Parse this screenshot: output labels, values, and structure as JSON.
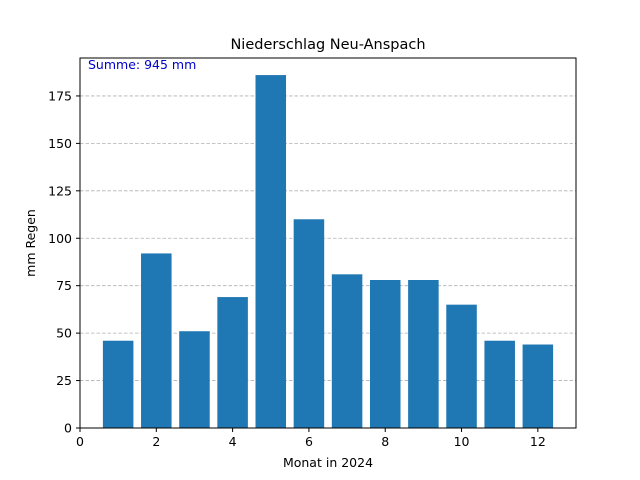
{
  "chart_data": {
    "type": "bar",
    "title": "Niederschlag  Neu-Anspach",
    "xlabel": "Monat in 2024",
    "ylabel": "mm Regen",
    "annotation": "Summe: 945 mm",
    "x": [
      1,
      2,
      3,
      4,
      5,
      6,
      7,
      8,
      9,
      10,
      11,
      12
    ],
    "values": [
      46,
      92,
      51,
      69,
      186,
      110,
      81,
      78,
      78,
      65,
      46,
      44
    ],
    "xlim": [
      0,
      13
    ],
    "ylim": [
      0,
      195
    ],
    "x_ticks": [
      0,
      2,
      4,
      6,
      8,
      10,
      12
    ],
    "y_ticks": [
      0,
      25,
      50,
      75,
      100,
      125,
      150,
      175
    ],
    "grid": "y-dashed",
    "colors": {
      "bar": "#1f77b4",
      "grid": "#b0b0b0",
      "annotation": "#0000cc",
      "axis": "#000000"
    }
  }
}
